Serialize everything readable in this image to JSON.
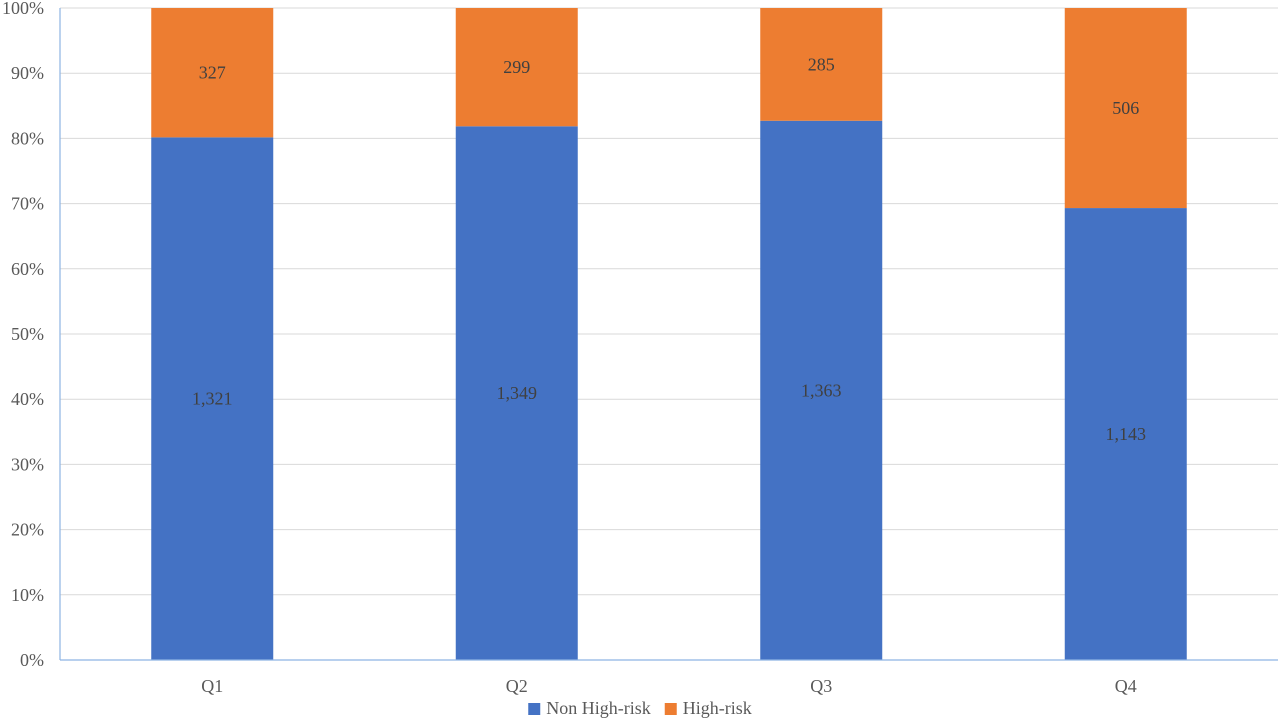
{
  "chart_data": {
    "type": "bar",
    "stacked": true,
    "normalized": true,
    "categories": [
      "Q1",
      "Q2",
      "Q3",
      "Q4"
    ],
    "series": [
      {
        "name": "Non High-risk",
        "values": [
          1321,
          1349,
          1363,
          1143
        ],
        "labels": [
          "1,321",
          "1,349",
          "1,363",
          "1,143"
        ],
        "color": "#4472c4"
      },
      {
        "name": "High-risk",
        "values": [
          327,
          299,
          285,
          506
        ],
        "labels": [
          "327",
          "299",
          "285",
          "506"
        ],
        "color": "#ed7d31"
      }
    ],
    "yticks": [
      "0%",
      "10%",
      "20%",
      "30%",
      "40%",
      "50%",
      "60%",
      "70%",
      "80%",
      "90%",
      "100%"
    ],
    "ylim": [
      0,
      100
    ],
    "grid": true,
    "legend_position": "bottom"
  }
}
